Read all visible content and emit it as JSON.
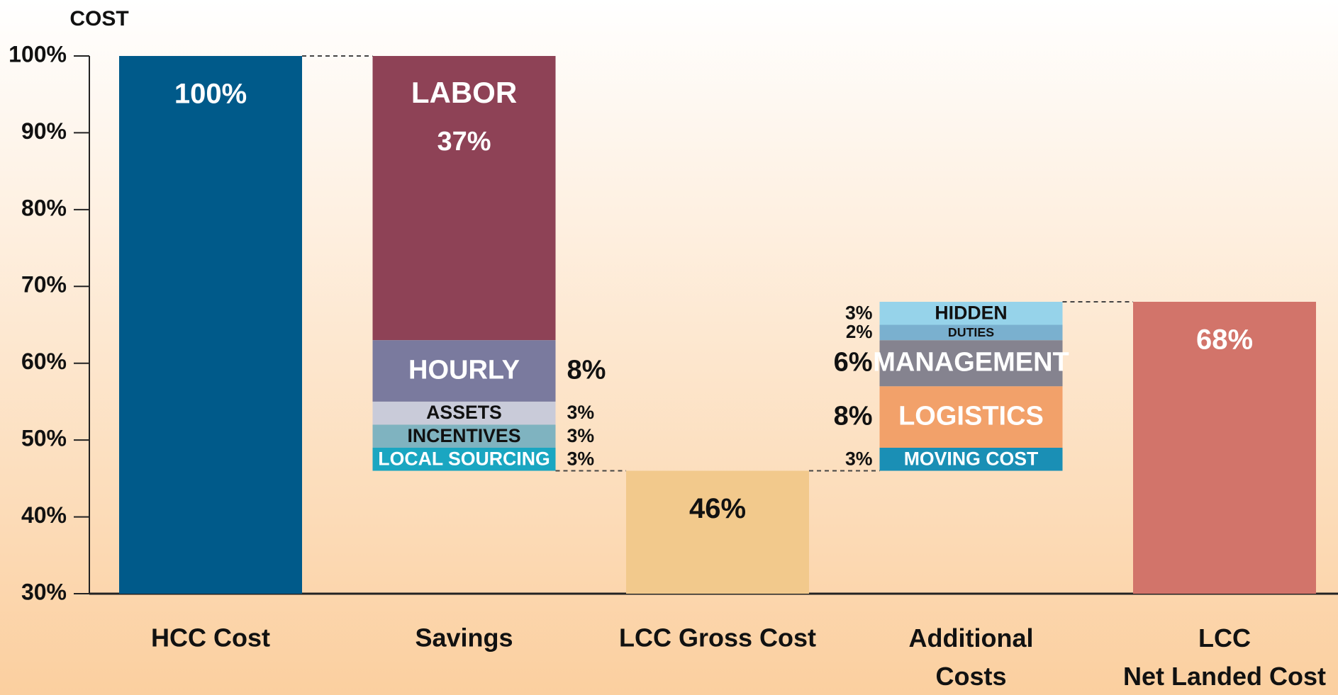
{
  "chart_data": {
    "type": "waterfall",
    "ylabel": "COST",
    "ylim": [
      30,
      100
    ],
    "yticks": [
      {
        "value": 30,
        "label": "30%"
      },
      {
        "value": 40,
        "label": "40%"
      },
      {
        "value": 50,
        "label": "50%"
      },
      {
        "value": 60,
        "label": "60%"
      },
      {
        "value": 70,
        "label": "70%"
      },
      {
        "value": 80,
        "label": "80%"
      },
      {
        "value": 90,
        "label": "90%"
      },
      {
        "value": 100,
        "label": "100%"
      }
    ],
    "bars": [
      {
        "category": "HCC Cost",
        "value": 100,
        "value_label": "100%",
        "color": "#005a8a",
        "label_color": "#ffffff"
      },
      {
        "category": "Savings",
        "kind": "decrease",
        "segments": [
          {
            "name": "LABOR",
            "value": 37,
            "value_label": "37%",
            "color": "#8e4256",
            "label_color": "#ffffff"
          },
          {
            "name": "HOURLY",
            "value": 8,
            "value_label": "8%",
            "color": "#7a7a9e",
            "label_color": "#ffffff"
          },
          {
            "name": "ASSETS",
            "value": 3,
            "value_label": "3%",
            "color": "#c9cbd9",
            "label_color": "#111111"
          },
          {
            "name": "INCENTIVES",
            "value": 3,
            "value_label": "3%",
            "color": "#7fb3c0",
            "label_color": "#111111"
          },
          {
            "name": "LOCAL SOURCING",
            "value": 3,
            "value_label": "3%",
            "color": "#1aa6c1",
            "label_color": "#ffffff"
          }
        ]
      },
      {
        "category": "LCC Gross Cost",
        "value": 46,
        "value_label": "46%",
        "color": "#f2c98c",
        "label_color": "#111111"
      },
      {
        "category": "Additional\nCosts",
        "kind": "increase",
        "segments": [
          {
            "name": "MOVING COST",
            "value": 3,
            "value_label": "3%",
            "color": "#1a8fb5",
            "label_color": "#ffffff"
          },
          {
            "name": "LOGISTICS",
            "value": 8,
            "value_label": "8%",
            "color": "#f2a16a",
            "label_color": "#ffffff"
          },
          {
            "name": "MANAGEMENT",
            "value": 6,
            "value_label": "6%",
            "color": "#85838f",
            "label_color": "#ffffff"
          },
          {
            "name": "DUTIES",
            "value": 2,
            "value_label": "2%",
            "color": "#7ab0cf",
            "label_color": "#111111"
          },
          {
            "name": "HIDDEN",
            "value": 3,
            "value_label": "3%",
            "color": "#96d3ea",
            "label_color": "#111111"
          }
        ]
      },
      {
        "category": "LCC\nNet Landed Cost",
        "value": 68,
        "value_label": "68%",
        "color": "#d2746a",
        "label_color": "#ffffff"
      }
    ]
  }
}
